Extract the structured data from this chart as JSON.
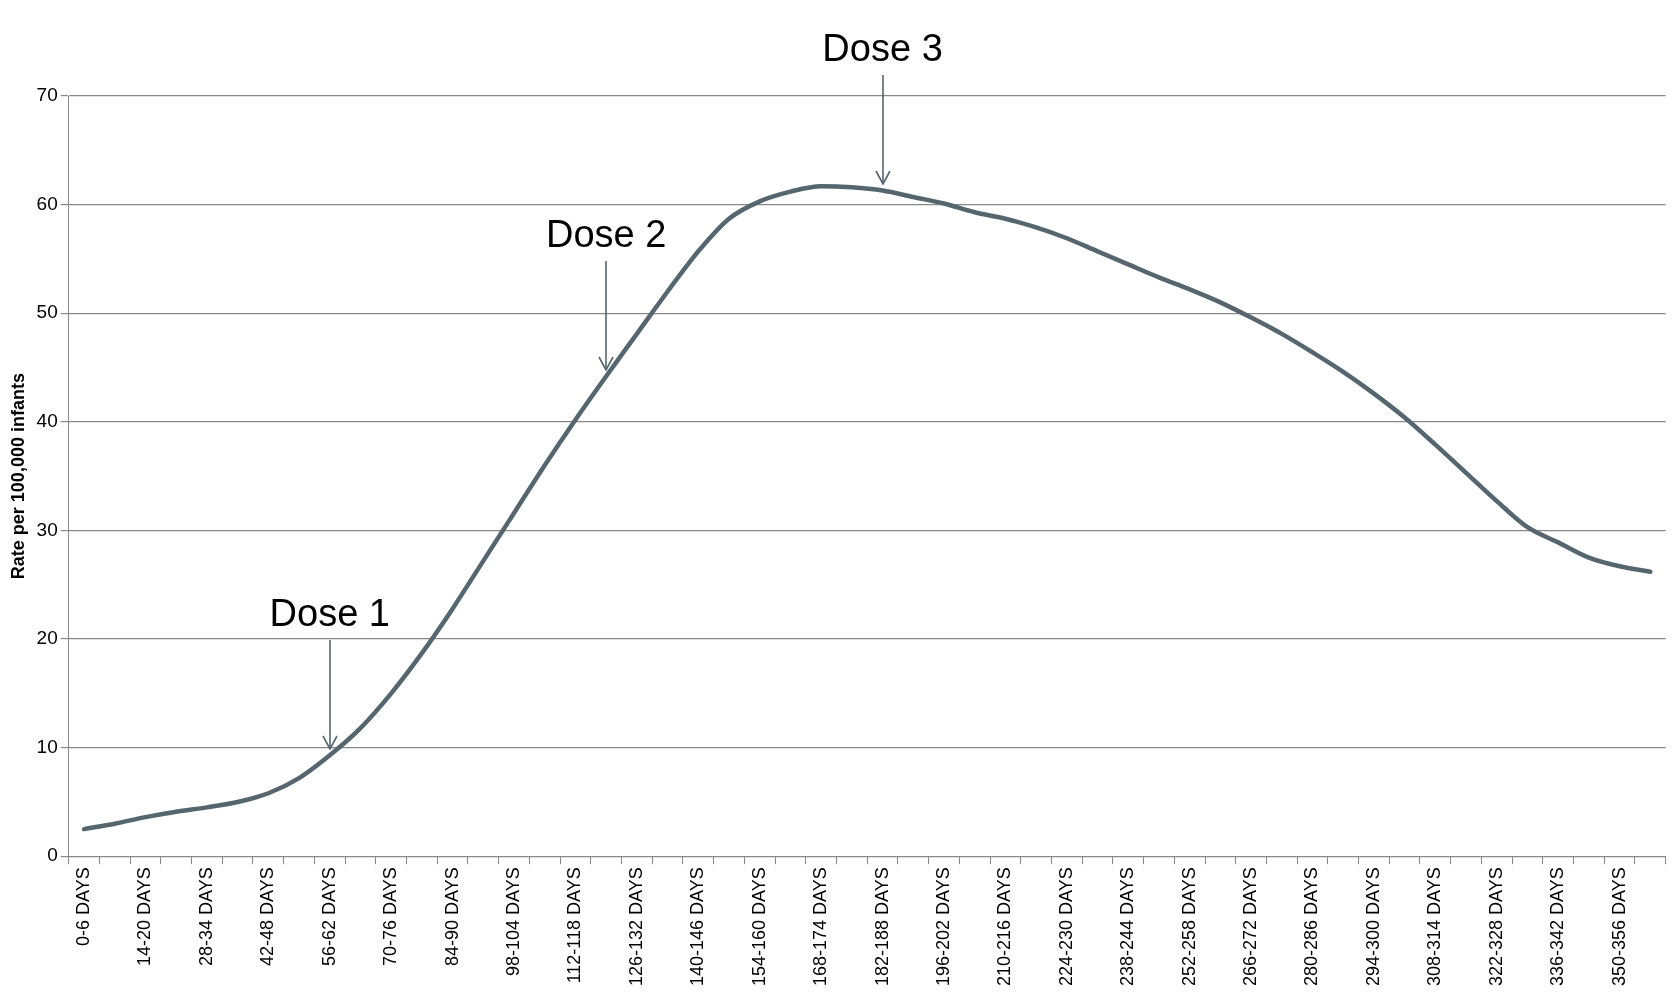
{
  "chart_data": {
    "type": "line",
    "ylabel": "Rate per 100,000 infants",
    "categories": [
      "0-6 DAYS",
      null,
      "14-20 DAYS",
      null,
      "28-34 DAYS",
      null,
      "42-48 DAYS",
      null,
      "56-62 DAYS",
      null,
      "70-76 DAYS",
      null,
      "84-90 DAYS",
      null,
      "98-104 DAYS",
      null,
      "112-118 DAYS",
      null,
      "126-132 DAYS",
      null,
      "140-146 DAYS",
      null,
      "154-160 DAYS",
      null,
      "168-174 DAYS",
      null,
      "182-188 DAYS",
      null,
      "196-202 DAYS",
      null,
      "210-216 DAYS",
      null,
      "224-230 DAYS",
      null,
      "238-244 DAYS",
      null,
      "252-258 DAYS",
      null,
      "266-272 DAYS",
      null,
      "280-286 DAYS",
      null,
      "294-300 DAYS",
      null,
      "308-314 DAYS",
      null,
      "322-328 DAYS",
      null,
      "336-342 DAYS",
      null,
      "350-356 DAYS",
      null
    ],
    "series": [
      {
        "color": "#55666f",
        "values": [
          2.5,
          3.0,
          3.6,
          4.1,
          4.5,
          5.0,
          5.8,
          7.2,
          9.3,
          11.8,
          15.0,
          18.7,
          22.8,
          27.2,
          31.6,
          36.0,
          40.2,
          44.2,
          48.1,
          52.0,
          55.7,
          58.7,
          60.3,
          61.2,
          61.7,
          61.6,
          61.3,
          60.7,
          60.1,
          59.3,
          58.7,
          57.9,
          56.9,
          55.7,
          54.5,
          53.3,
          52.2,
          51.0,
          49.6,
          48.1,
          46.4,
          44.6,
          42.6,
          40.4,
          37.9,
          35.3,
          32.7,
          30.3,
          28.9,
          27.5,
          26.7,
          26.2
        ]
      }
    ],
    "ylim": [
      0,
      70
    ],
    "yticks": [
      0,
      10,
      20,
      30,
      40,
      50,
      60,
      70
    ],
    "grid": "y",
    "legend": false,
    "marker": "none",
    "line_style": "solid",
    "annotations": [
      {
        "text": "Dose 1",
        "x": "56-62 DAYS",
        "y": 9.3
      },
      {
        "text": "Dose 2",
        "y": 44.2
      },
      {
        "text": "Dose 3",
        "x": "182-188 DAYS",
        "y": 61.3
      }
    ]
  }
}
